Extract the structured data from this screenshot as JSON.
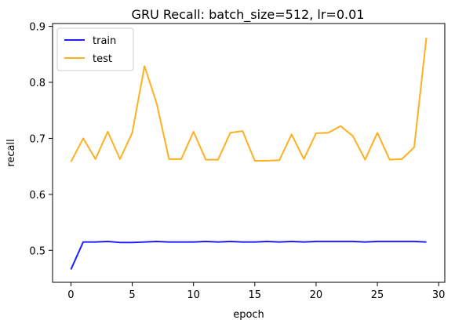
{
  "chart_data": {
    "type": "line",
    "title": "GRU Recall: batch_size=512, lr=0.01",
    "xlabel": "epoch",
    "ylabel": "recall",
    "xlim": [
      -1.5,
      30.5
    ],
    "ylim": [
      0.443,
      0.905
    ],
    "xticks": [
      0,
      5,
      10,
      15,
      20,
      25,
      30
    ],
    "yticks": [
      0.5,
      0.6,
      0.7,
      0.8,
      0.9
    ],
    "xtick_labels": [
      "0",
      "5",
      "10",
      "15",
      "20",
      "25",
      "30"
    ],
    "ytick_labels": [
      "0.5",
      "0.6",
      "0.7",
      "0.8",
      "0.9"
    ],
    "grid": false,
    "legend_position": "top-left",
    "x": [
      0,
      1,
      2,
      3,
      4,
      5,
      6,
      7,
      8,
      9,
      10,
      11,
      12,
      13,
      14,
      15,
      16,
      17,
      18,
      19,
      20,
      21,
      22,
      23,
      24,
      25,
      26,
      27,
      28,
      29
    ],
    "series": [
      {
        "name": "train",
        "color": "#1f1fff",
        "values": [
          0.466,
          0.515,
          0.515,
          0.516,
          0.514,
          0.514,
          0.515,
          0.516,
          0.515,
          0.515,
          0.515,
          0.516,
          0.515,
          0.516,
          0.515,
          0.515,
          0.516,
          0.515,
          0.516,
          0.515,
          0.516,
          0.516,
          0.516,
          0.516,
          0.515,
          0.516,
          0.516,
          0.516,
          0.516,
          0.515
        ]
      },
      {
        "name": "test",
        "color": "#ffb020",
        "values": [
          0.658,
          0.7,
          0.663,
          0.712,
          0.663,
          0.71,
          0.829,
          0.762,
          0.663,
          0.663,
          0.712,
          0.662,
          0.662,
          0.71,
          0.713,
          0.66,
          0.66,
          0.661,
          0.707,
          0.663,
          0.709,
          0.71,
          0.722,
          0.704,
          0.662,
          0.71,
          0.662,
          0.663,
          0.684,
          0.88
        ]
      }
    ]
  }
}
